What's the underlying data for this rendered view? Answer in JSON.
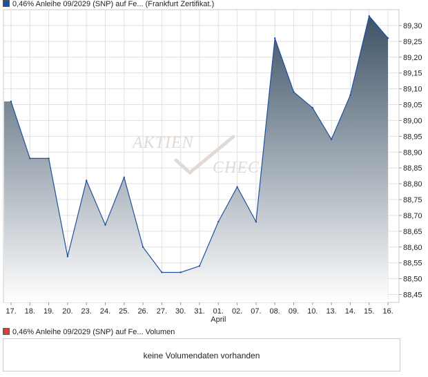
{
  "legend": {
    "price_label": "0,46% Anleihe 09/2029 (SNP) auf Fe... (Frankfurt Zertifikat.)",
    "volume_label": "0,46% Anleihe 09/2029 (SNP) auf Fe... Volumen",
    "price_color": "#1f4fa0",
    "volume_color": "#d04040"
  },
  "watermark": {
    "line1": "AKTIEN",
    "line2": "CHECK"
  },
  "volume": {
    "message": "keine Volumendaten vorhanden"
  },
  "chart_data": {
    "type": "area",
    "categories": [
      "17.",
      "18.",
      "19.",
      "20.",
      "23.",
      "24.",
      "25.",
      "26.",
      "27.",
      "30.",
      "31.",
      "01.",
      "02.",
      "07.",
      "08.",
      "09.",
      "10.",
      "13.",
      "14.",
      "15.",
      "16."
    ],
    "month_labels": [
      {
        "index": 11,
        "label": "April"
      }
    ],
    "series": [
      {
        "values": [
          89.06,
          88.88,
          88.88,
          88.57,
          88.81,
          88.67,
          88.82,
          88.6,
          88.52,
          88.52,
          88.54,
          88.68,
          88.79,
          88.68,
          89.26,
          89.09,
          89.04,
          88.94,
          89.08,
          89.33,
          89.26
        ]
      }
    ],
    "y_ticks": [
      "89,30",
      "89,25",
      "89,20",
      "89,15",
      "89,10",
      "89,05",
      "89,00",
      "88,95",
      "88,90",
      "88,85",
      "88,80",
      "88,75",
      "88,70",
      "88,65",
      "88,60",
      "88,55",
      "88,50",
      "88,45"
    ],
    "ylim": [
      88.425,
      89.35
    ],
    "grid": true,
    "line_color": "#1f4fa0",
    "fill_top": "#3d5266",
    "fill_bottom": "#ffffff"
  }
}
